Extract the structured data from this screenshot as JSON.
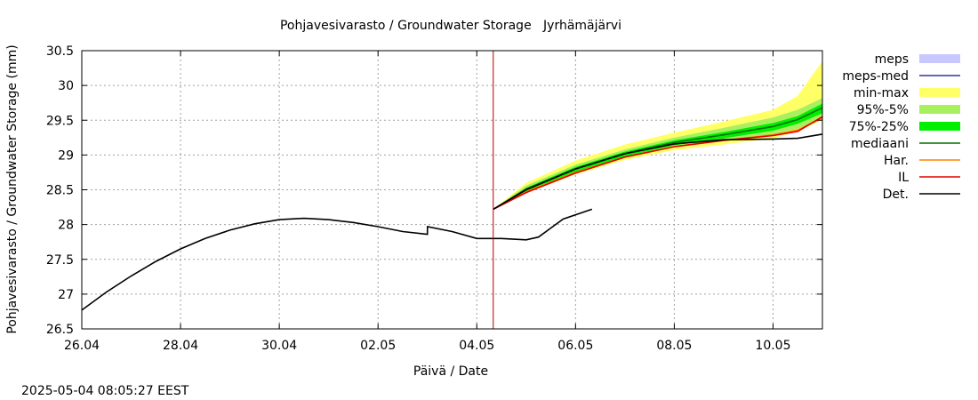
{
  "chart_data": {
    "type": "line",
    "title": "Pohjavesivarasto / Groundwater Storage   Jyrhämäjärvi",
    "xlabel": "Päivä / Date",
    "ylabel": "Pohjavesivarasto / Groundwater Storage (mm)",
    "timestamp": "2025-05-04 08:05:27 EEST",
    "xlim": [
      "2025-04-26",
      "2025-05-11"
    ],
    "ylim": [
      26.5,
      30.5
    ],
    "x_ticks": [
      {
        "date": "2025-04-26",
        "label": "26.04"
      },
      {
        "date": "2025-04-28",
        "label": "28.04"
      },
      {
        "date": "2025-04-30",
        "label": "30.04"
      },
      {
        "date": "2025-05-02",
        "label": "02.05"
      },
      {
        "date": "2025-05-04",
        "label": "04.05"
      },
      {
        "date": "2025-05-06",
        "label": "06.05"
      },
      {
        "date": "2025-05-08",
        "label": "08.05"
      },
      {
        "date": "2025-05-10",
        "label": "10.05"
      }
    ],
    "y_ticks": [
      "26.5",
      "27",
      "27.5",
      "28",
      "28.5",
      "29",
      "29.5",
      "30",
      "30.5"
    ],
    "grid": true,
    "forecast_start": "2025-05-04 08:00",
    "legend_position": "right",
    "legend": [
      {
        "label": "meps",
        "kind": "band",
        "color": "#c8c8ff"
      },
      {
        "label": "meps-med",
        "kind": "line",
        "color": "#3030a0"
      },
      {
        "label": "min-max",
        "kind": "band",
        "color": "#ffff66"
      },
      {
        "label": "95%-5%",
        "kind": "band",
        "color": "#a8f060"
      },
      {
        "label": "75%-25%",
        "kind": "band",
        "color": "#00ee00"
      },
      {
        "label": "mediaani",
        "kind": "line",
        "color": "#007000"
      },
      {
        "label": "Har.",
        "kind": "line",
        "color": "#ff8000"
      },
      {
        "label": "IL",
        "kind": "line",
        "color": "#e00000"
      },
      {
        "label": "Det.",
        "kind": "line",
        "color": "#000000"
      }
    ],
    "observed": {
      "name": "Det.",
      "points": [
        [
          "2025-04-26 00:00",
          26.77
        ],
        [
          "2025-04-26 12:00",
          27.03
        ],
        [
          "2025-04-27 00:00",
          27.26
        ],
        [
          "2025-04-27 12:00",
          27.47
        ],
        [
          "2025-04-28 00:00",
          27.65
        ],
        [
          "2025-04-28 12:00",
          27.8
        ],
        [
          "2025-04-29 00:00",
          27.92
        ],
        [
          "2025-04-29 12:00",
          28.01
        ],
        [
          "2025-04-30 00:00",
          28.07
        ],
        [
          "2025-04-30 12:00",
          28.09
        ],
        [
          "2025-05-01 00:00",
          28.07
        ],
        [
          "2025-05-01 12:00",
          28.03
        ],
        [
          "2025-05-02 00:00",
          27.97
        ],
        [
          "2025-05-02 12:00",
          27.9
        ],
        [
          "2025-05-03 00:00",
          27.86
        ],
        [
          "2025-05-03 00:01",
          27.97
        ],
        [
          "2025-05-03 12:00",
          27.9
        ],
        [
          "2025-05-04 00:00",
          27.8
        ],
        [
          "2025-05-04 12:00",
          27.8
        ],
        [
          "2025-05-05 00:00",
          27.78
        ],
        [
          "2025-05-05 06:00",
          27.82
        ],
        [
          "2025-05-05 12:00",
          27.95
        ],
        [
          "2025-05-05 18:00",
          28.08
        ],
        [
          "2025-05-06 08:00",
          28.22
        ]
      ]
    },
    "forecast_x": [
      "2025-05-04 08:00",
      "2025-05-05 00:00",
      "2025-05-06 00:00",
      "2025-05-07 00:00",
      "2025-05-08 00:00",
      "2025-05-09 00:00",
      "2025-05-10 00:00",
      "2025-05-10 12:00",
      "2025-05-11 00:00"
    ],
    "bands": [
      {
        "name": "min-max",
        "lower": [
          28.22,
          28.45,
          28.72,
          28.93,
          29.07,
          29.15,
          29.24,
          29.34,
          29.5
        ],
        "upper": [
          28.22,
          28.6,
          28.92,
          29.15,
          29.32,
          29.48,
          29.65,
          29.85,
          30.35
        ]
      },
      {
        "name": "95%-5%",
        "lower": [
          28.22,
          28.46,
          28.74,
          28.96,
          29.11,
          29.2,
          29.3,
          29.38,
          29.52
        ],
        "upper": [
          28.22,
          28.56,
          28.86,
          29.08,
          29.25,
          29.39,
          29.54,
          29.65,
          29.82
        ]
      },
      {
        "name": "75%-25%",
        "lower": [
          28.22,
          28.48,
          28.76,
          28.98,
          29.14,
          29.24,
          29.35,
          29.45,
          29.6
        ],
        "upper": [
          28.22,
          28.53,
          28.83,
          29.05,
          29.21,
          29.33,
          29.46,
          29.56,
          29.74
        ]
      }
    ],
    "series": [
      {
        "name": "mediaani",
        "values": [
          28.22,
          28.51,
          28.8,
          29.02,
          29.18,
          29.29,
          29.41,
          29.51,
          29.68
        ]
      },
      {
        "name": "Har.",
        "values": [
          28.22,
          28.47,
          28.75,
          28.97,
          29.12,
          29.21,
          29.29,
          29.36,
          29.53
        ]
      },
      {
        "name": "IL",
        "values": [
          28.22,
          28.46,
          28.74,
          28.97,
          29.12,
          29.21,
          29.28,
          29.34,
          29.55
        ]
      },
      {
        "name": "Det.",
        "values": [
          28.22,
          28.5,
          28.8,
          29.02,
          29.16,
          29.22,
          29.23,
          29.24,
          29.3
        ]
      }
    ]
  }
}
